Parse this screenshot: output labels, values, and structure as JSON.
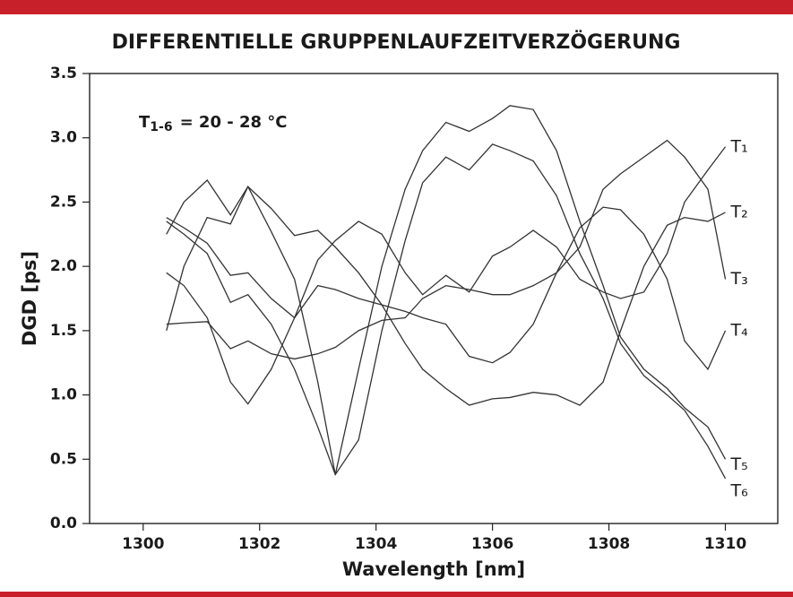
{
  "chart_data": {
    "type": "line",
    "title": "DIFFERENTIELLE GRUPPENLAUFZEITVERZÖGERUNG",
    "x_label": "Wavelength [nm]",
    "y_label": "DGD [ps]",
    "annotation": {
      "symbol": "T",
      "subscript": "1-6",
      "text": "= 20 - 28 °C"
    },
    "x": [
      1300.4,
      1300.7,
      1301.1,
      1301.5,
      1301.8,
      1302.2,
      1302.6,
      1303,
      1303.3,
      1303.7,
      1304.1,
      1304.5,
      1304.8,
      1305.2,
      1305.6,
      1306,
      1306.3,
      1306.7,
      1307.1,
      1307.5,
      1307.9,
      1308.2,
      1308.6,
      1309,
      1309.3,
      1309.7,
      1310
    ],
    "series": [
      {
        "name": "T₁",
        "color": "#333333",
        "values": [
          1.95,
          1.85,
          1.6,
          1.1,
          0.93,
          1.2,
          1.6,
          2.05,
          2.2,
          2.35,
          2.25,
          1.95,
          1.78,
          1.93,
          1.8,
          2.08,
          2.15,
          2.28,
          2.15,
          1.9,
          1.8,
          1.75,
          1.8,
          2.1,
          2.5,
          2.75,
          2.93
        ]
      },
      {
        "name": "T₂",
        "color": "#333333",
        "values": [
          1.5,
          2.0,
          2.38,
          2.33,
          2.62,
          2.45,
          2.24,
          2.28,
          2.15,
          1.95,
          1.7,
          1.4,
          1.2,
          1.05,
          0.92,
          0.97,
          0.98,
          1.02,
          1.0,
          0.92,
          1.1,
          1.5,
          2.0,
          2.32,
          2.38,
          2.35,
          2.42
        ]
      },
      {
        "name": "T₃",
        "color": "#333333",
        "values": [
          1.55,
          1.56,
          1.57,
          1.36,
          1.42,
          1.32,
          1.28,
          1.32,
          1.37,
          1.5,
          1.58,
          1.6,
          1.75,
          1.85,
          1.82,
          1.78,
          1.78,
          1.85,
          1.95,
          2.15,
          2.6,
          2.72,
          2.85,
          2.98,
          2.85,
          2.6,
          1.9
        ]
      },
      {
        "name": "T₄",
        "color": "#333333",
        "values": [
          2.38,
          2.3,
          2.18,
          1.93,
          1.95,
          1.75,
          1.6,
          1.85,
          1.82,
          1.75,
          1.7,
          1.65,
          1.6,
          1.55,
          1.3,
          1.25,
          1.33,
          1.55,
          1.95,
          2.3,
          2.46,
          2.44,
          2.25,
          1.9,
          1.42,
          1.2,
          1.5
        ]
      },
      {
        "name": "T₅",
        "color": "#333333",
        "values": [
          2.25,
          2.5,
          2.67,
          2.4,
          2.62,
          2.27,
          1.9,
          1.1,
          0.38,
          1.2,
          2.0,
          2.6,
          2.9,
          3.12,
          3.05,
          3.15,
          3.25,
          3.22,
          2.9,
          2.35,
          1.85,
          1.45,
          1.2,
          1.05,
          0.9,
          0.75,
          0.5
        ]
      },
      {
        "name": "T₆",
        "color": "#333333",
        "values": [
          2.35,
          2.25,
          2.1,
          1.72,
          1.78,
          1.55,
          1.2,
          0.75,
          0.38,
          0.65,
          1.5,
          2.2,
          2.65,
          2.85,
          2.75,
          2.95,
          2.9,
          2.82,
          2.55,
          2.1,
          1.75,
          1.4,
          1.15,
          1.0,
          0.88,
          0.6,
          0.35
        ]
      }
    ],
    "xlim": [
      1299.08,
      1310.9
    ],
    "ylim": [
      0,
      3.5
    ],
    "xticks": [
      1300,
      1302,
      1304,
      1306,
      1308,
      1310
    ],
    "yticks": [
      {
        "value": 0,
        "label": "0.0"
      },
      0.5,
      {
        "value": 1,
        "label": "1.0"
      },
      1.5,
      {
        "value": 2,
        "label": "2.0"
      },
      2.5,
      {
        "value": 3,
        "label": "3.0"
      },
      3.5
    ],
    "grid": false
  }
}
